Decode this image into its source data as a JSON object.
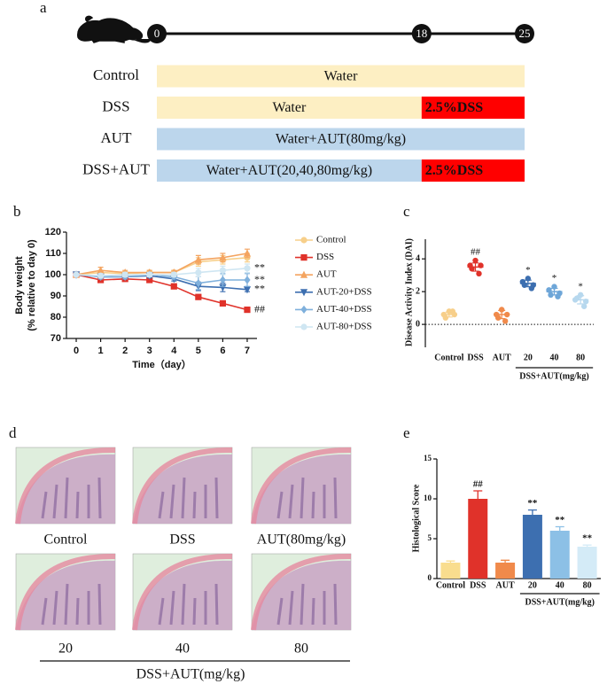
{
  "timeline": {
    "panel": "a",
    "ticks": [
      0,
      18,
      25
    ],
    "rows": [
      {
        "label": "Control",
        "segments": [
          {
            "text": "Water",
            "kind": "water"
          }
        ]
      },
      {
        "label": "DSS",
        "segments": [
          {
            "text": "Water",
            "kind": "water"
          },
          {
            "text": "2.5%DSS",
            "kind": "dss"
          }
        ]
      },
      {
        "label": "AUT",
        "segments": [
          {
            "text": "Water+AUT(80mg/kg)",
            "kind": "aut"
          }
        ]
      },
      {
        "label": "DSS+AUT",
        "segments": [
          {
            "text": "Water+AUT(20,40,80mg/kg)",
            "kind": "aut"
          },
          {
            "text": "2.5%DSS",
            "kind": "dss"
          }
        ]
      }
    ]
  },
  "chart_data": [
    {
      "panel": "b",
      "type": "line",
      "xlabel": "Time（day）",
      "ylabel": [
        "Body weight",
        "(% relative to day 0)"
      ],
      "x": [
        0,
        1,
        2,
        3,
        4,
        5,
        6,
        7
      ],
      "xlim": [
        -0.4,
        7.4
      ],
      "xticks": [
        0,
        1,
        2,
        3,
        4,
        5,
        6,
        7
      ],
      "ylim": [
        70,
        120
      ],
      "yticks": [
        70,
        80,
        90,
        100,
        110,
        120
      ],
      "legend": "right",
      "series": [
        {
          "name": "Control",
          "color": "#f7cf8a",
          "marker": "circle",
          "values": [
            100,
            101,
            100.5,
            101,
            101,
            106,
            107,
            108
          ],
          "errors": [
            0.5,
            1,
            1,
            1,
            1,
            2,
            2,
            2
          ]
        },
        {
          "name": "DSS",
          "color": "#e0322a",
          "marker": "square",
          "values": [
            100,
            97.5,
            98,
            97.5,
            94.5,
            89.5,
            86.5,
            83.5
          ],
          "errors": [
            0.5,
            0.8,
            1,
            1,
            1,
            1,
            1,
            0.8
          ],
          "annotation": "##"
        },
        {
          "name": "AUT",
          "color": "#f4a460",
          "marker": "triangle",
          "values": [
            100,
            102,
            101,
            101,
            101,
            107,
            108,
            110
          ],
          "errors": [
            0.5,
            1.5,
            1,
            1,
            1,
            2,
            2,
            2
          ]
        },
        {
          "name": "AUT-20+DSS",
          "color": "#3d6fb0",
          "marker": "triangle-down",
          "values": [
            100,
            99,
            99,
            99.5,
            98,
            94.5,
            94,
            93
          ],
          "errors": [
            0.5,
            1,
            1,
            1,
            1,
            2,
            2,
            1
          ],
          "annotation": "**"
        },
        {
          "name": "AUT-40+DSS",
          "color": "#7fb0dc",
          "marker": "diamond",
          "values": [
            100,
            99,
            99,
            100,
            99,
            96,
            97.5,
            97.5
          ],
          "errors": [
            0.5,
            1,
            1,
            1,
            1,
            3,
            3,
            3
          ],
          "annotation": "**"
        },
        {
          "name": "AUT-80+DSS",
          "color": "#cfe6f2",
          "marker": "circle",
          "values": [
            100,
            99.5,
            100,
            100,
            100,
            101,
            102,
            103
          ],
          "errors": [
            0.5,
            1,
            1,
            1,
            1,
            2,
            2,
            2
          ],
          "annotation": "**"
        }
      ]
    },
    {
      "panel": "c",
      "type": "dot",
      "ylabel": "Disease Activity Index (DAI)",
      "categories": [
        "Control",
        "DSS",
        "AUT",
        "20",
        "40",
        "80"
      ],
      "group_label": "DSS+AUT(mg/kg)",
      "ylim": [
        -1.4,
        5.2
      ],
      "yticks": [
        0,
        2,
        4
      ],
      "reference_line": 0,
      "groups": [
        {
          "color": "#f7cf8a",
          "values": [
            0.8,
            0.6,
            0.6,
            0.4,
            0.8
          ],
          "mean": 0.6,
          "error": 0.15
        },
        {
          "color": "#e0322a",
          "values": [
            3.9,
            3.6,
            3.6,
            3.4,
            3.1
          ],
          "mean": 3.5,
          "error": 0.25,
          "annotation": "##"
        },
        {
          "color": "#f08a4b",
          "values": [
            0.9,
            0.6,
            0.6,
            0.4,
            0.2
          ],
          "mean": 0.6,
          "error": 0.25
        },
        {
          "color": "#3d6fb0",
          "values": [
            2.8,
            2.6,
            2.4,
            2.4,
            2.2
          ],
          "mean": 2.5,
          "error": 0.2,
          "annotation": "*"
        },
        {
          "color": "#6ea6d8",
          "values": [
            2.3,
            2.1,
            1.9,
            1.8,
            1.7
          ],
          "mean": 2.0,
          "error": 0.2,
          "annotation": "*"
        },
        {
          "color": "#b7d8ee",
          "values": [
            1.8,
            1.5,
            1.4,
            1.6,
            1.1
          ],
          "mean": 1.5,
          "error": 0.25,
          "annotation": "*"
        }
      ]
    },
    {
      "panel": "e",
      "type": "bar",
      "ylabel": "Histological Score",
      "categories": [
        "Control",
        "DSS",
        "AUT",
        "20",
        "40",
        "80"
      ],
      "group_label": "DSS+AUT(mg/kg)",
      "ylim": [
        0,
        15
      ],
      "yticks": [
        0,
        5,
        10,
        15
      ],
      "values": [
        2,
        10,
        2,
        8,
        6,
        4
      ],
      "errors": [
        0.2,
        1,
        0.3,
        0.6,
        0.5,
        0.2
      ],
      "colors": [
        "#f9dd8e",
        "#e0322a",
        "#f08a4b",
        "#3d6fb0",
        "#8cc0e6",
        "#d4ebf7"
      ],
      "annotations": [
        null,
        "##",
        null,
        "**",
        "**",
        "**"
      ]
    }
  ],
  "histology": {
    "panel": "d",
    "images": [
      {
        "label": "Control"
      },
      {
        "label": "DSS"
      },
      {
        "label": "AUT(80mg/kg)"
      },
      {
        "label": "20"
      },
      {
        "label": "40"
      },
      {
        "label": "80"
      }
    ],
    "group_label": "DSS+AUT(mg/kg)"
  }
}
